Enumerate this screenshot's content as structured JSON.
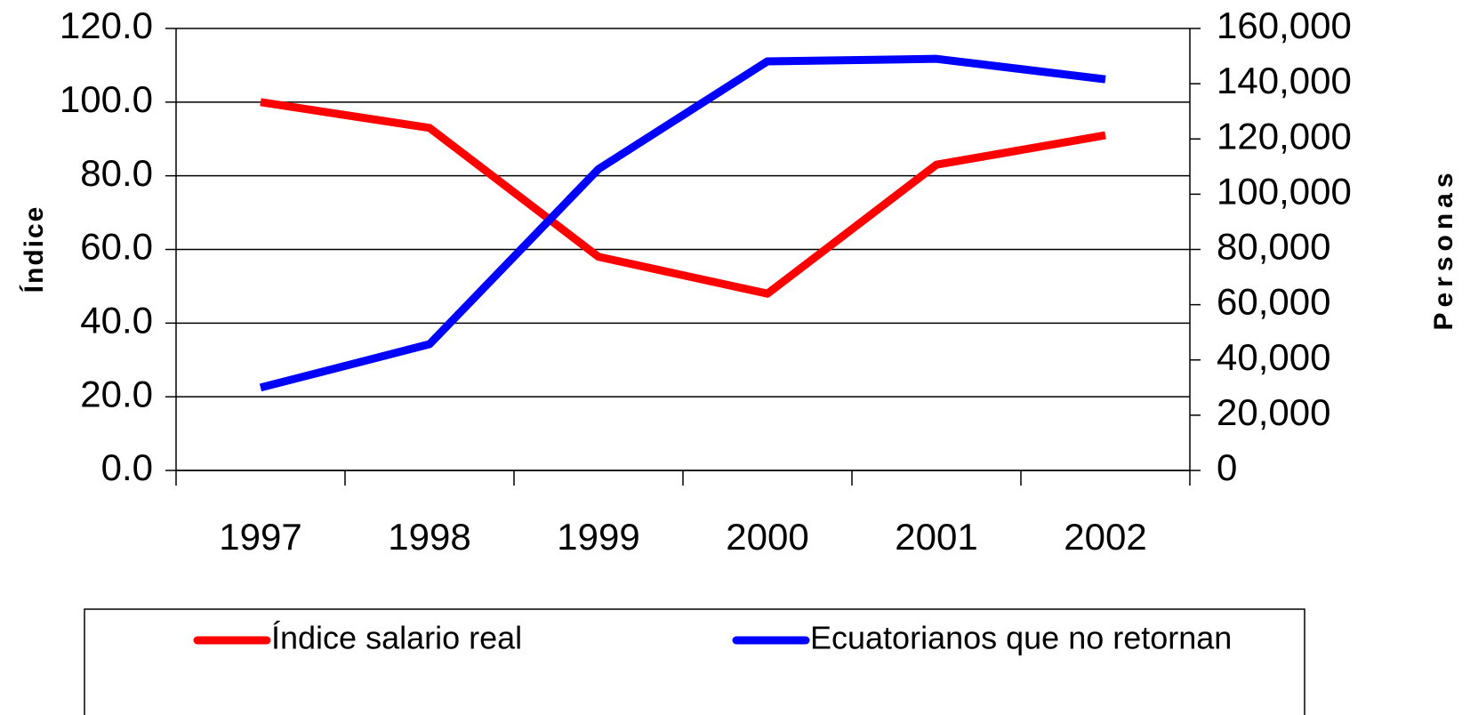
{
  "chart_data": {
    "type": "line",
    "categories": [
      "1997",
      "1998",
      "1999",
      "2000",
      "2001",
      "2002"
    ],
    "series": [
      {
        "name": "Índice salario real",
        "color": "#ff0000",
        "values": [
          100,
          93,
          58,
          48,
          83,
          91
        ]
      },
      {
        "name": "Ecuatorianos que no retornan",
        "color": "#0000ff",
        "axis": "y2",
        "values": [
          30000,
          45700,
          109100,
          148100,
          149000,
          141600
        ]
      }
    ],
    "ylabel": "Índice",
    "y2label": "Personas",
    "ylim": [
      0,
      120
    ],
    "yticks": [
      {
        "value": 0,
        "label": "0.0"
      },
      {
        "value": 20,
        "label": "20.0"
      },
      {
        "value": 40,
        "label": "40.0"
      },
      {
        "value": 60,
        "label": "60.0"
      },
      {
        "value": 80,
        "label": "80.0"
      },
      {
        "value": 100,
        "label": "100.0"
      },
      {
        "value": 120,
        "label": "120.0"
      }
    ],
    "y2lim": [
      0,
      160000
    ],
    "y2ticks": [
      0,
      {
        "value": 20000,
        "label": "20,000"
      },
      {
        "value": 40000,
        "label": "40,000"
      },
      {
        "value": 60000,
        "label": "60,000"
      },
      {
        "value": 80000,
        "label": "80,000"
      },
      {
        "value": 100000,
        "label": "100,000"
      },
      {
        "value": 120000,
        "label": "120,000"
      },
      {
        "value": 140000,
        "label": "140,000"
      },
      {
        "value": 160000,
        "label": "160,000"
      }
    ],
    "grid": true,
    "legend": "bottom"
  }
}
